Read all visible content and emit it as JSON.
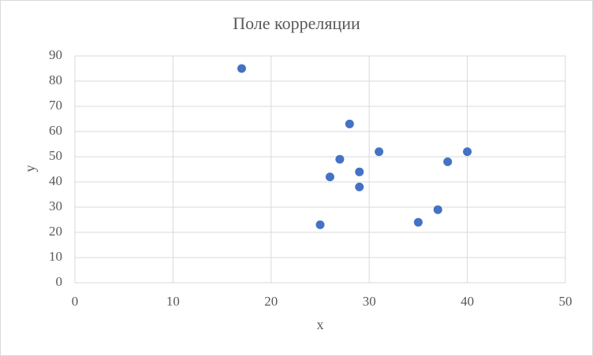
{
  "chart_data": {
    "type": "scatter",
    "title": "Поле корреляции",
    "x_label": "x",
    "y_label": "y",
    "series": [
      {
        "color": "#4472c4",
        "x": [
          17,
          28,
          27,
          31,
          29,
          26,
          29,
          25,
          35,
          37,
          38,
          40
        ],
        "values": [
          85,
          63,
          49,
          52,
          44,
          42,
          38,
          23,
          24,
          29,
          48,
          52
        ]
      }
    ],
    "xlim": [
      0,
      50
    ],
    "xticks": [
      0,
      10,
      20,
      30,
      40,
      50
    ],
    "ylim": [
      0,
      90
    ],
    "yticks": [
      0,
      10,
      20,
      30,
      40,
      50,
      60,
      70,
      80,
      90
    ],
    "grid": true
  }
}
